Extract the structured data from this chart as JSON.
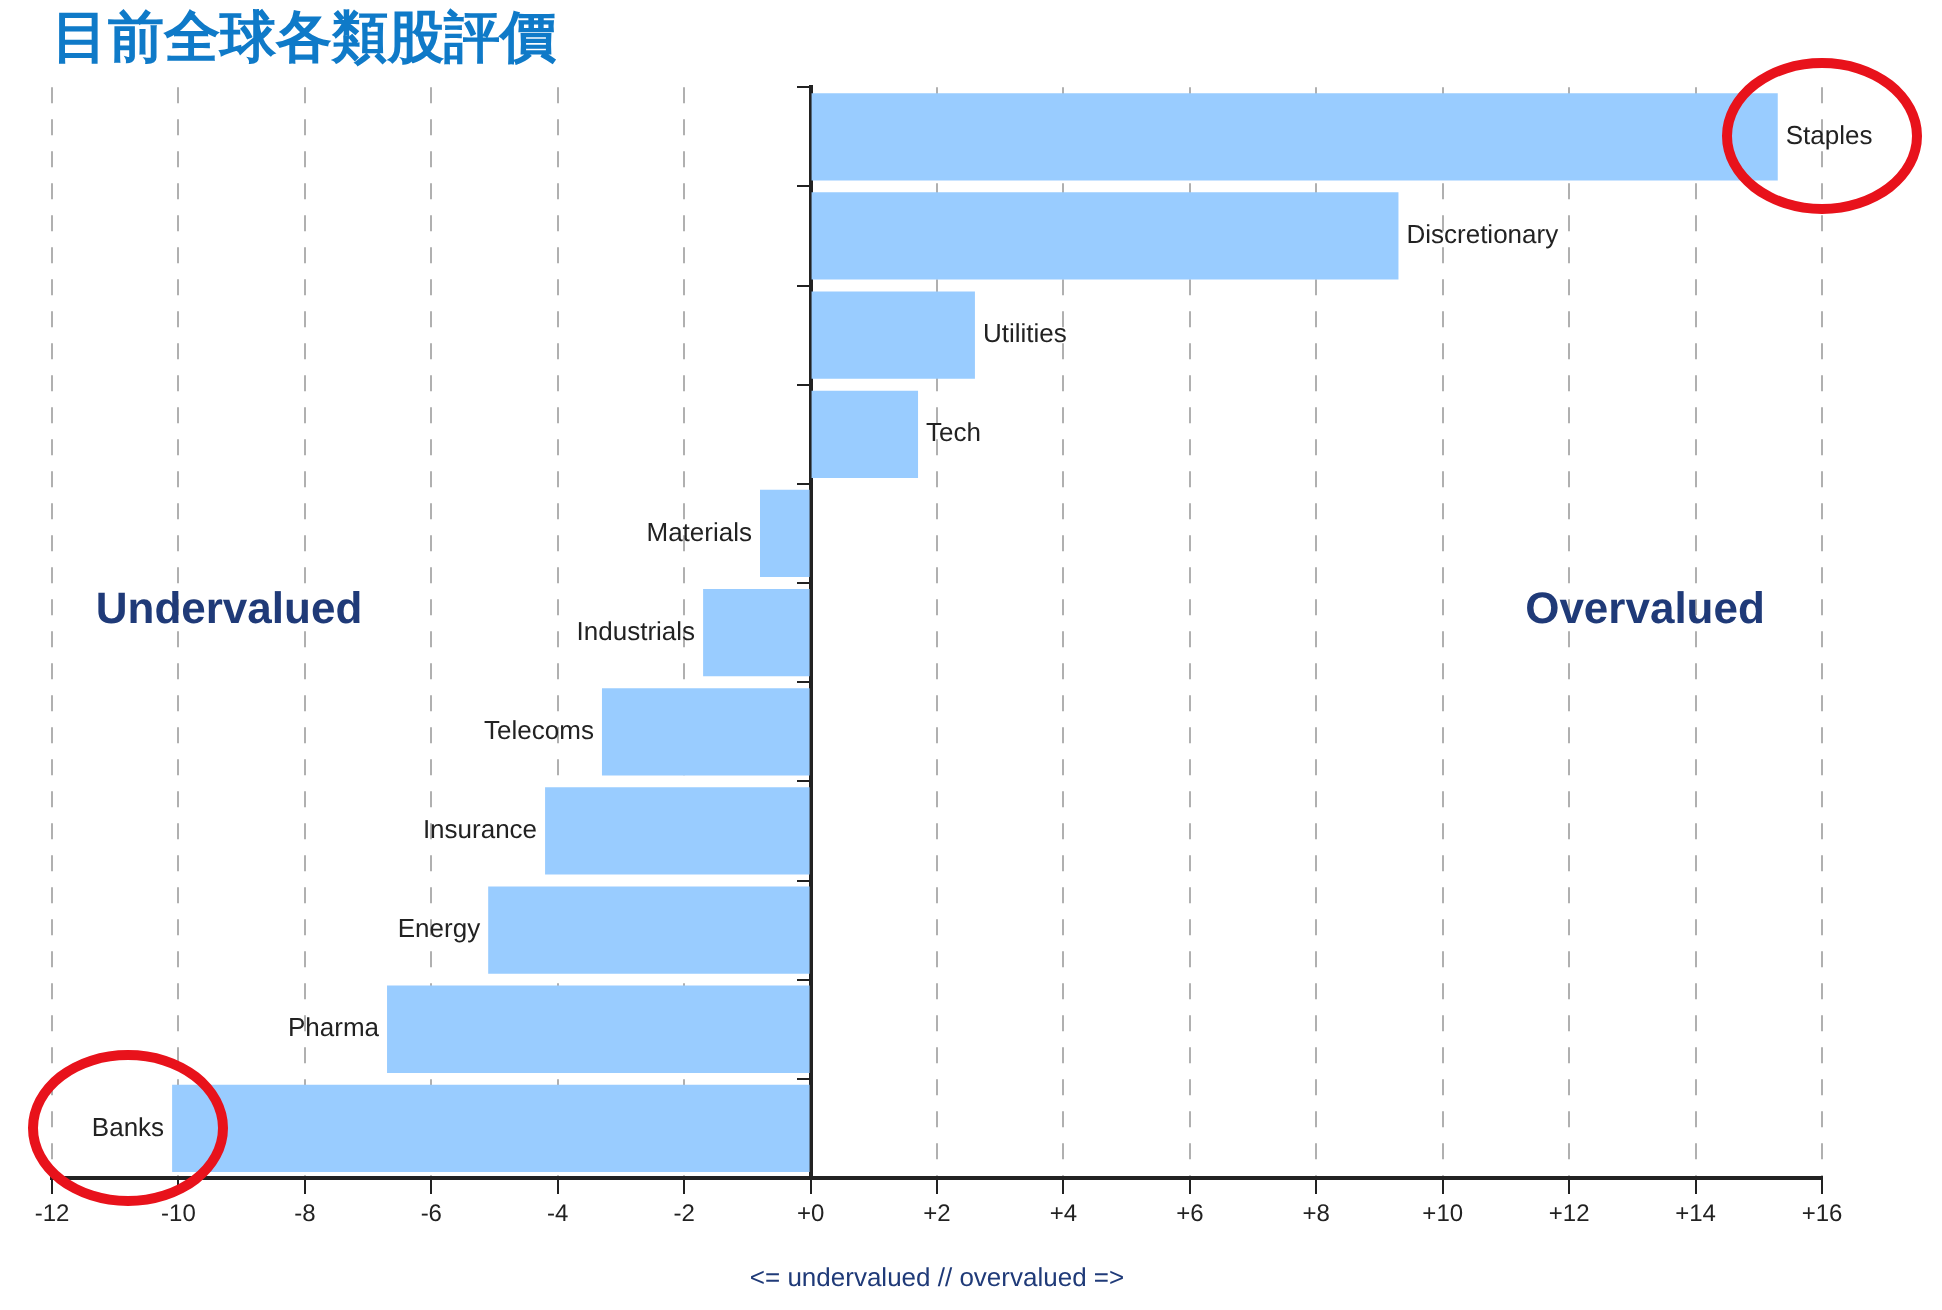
{
  "chart_data": {
    "type": "bar",
    "orientation": "horizontal",
    "title": "目前全球各類股評價",
    "xlabel": "<= undervalued // overvalued =>",
    "categories": [
      "Staples",
      "Discretionary",
      "Utilities",
      "Tech",
      "Materials",
      "Industrials",
      "Telecoms",
      "Insurance",
      "Energy",
      "Pharma",
      "Banks"
    ],
    "values": [
      15.3,
      9.3,
      2.6,
      1.7,
      -0.8,
      -1.7,
      -3.3,
      -4.2,
      -5.1,
      -6.7,
      -10.1
    ],
    "color": "#99ccff",
    "xlim": [
      -12,
      16
    ],
    "xticks": [
      -12,
      -10,
      -8,
      -6,
      -4,
      -2,
      {
        "value": 0,
        "label": "+0"
      },
      {
        "value": 2,
        "label": "+2"
      },
      {
        "value": 4,
        "label": "+4"
      },
      {
        "value": 6,
        "label": "+6"
      },
      {
        "value": 8,
        "label": "+8"
      },
      {
        "value": 10,
        "label": "+10"
      },
      {
        "value": 12,
        "label": "+12"
      },
      {
        "value": 14,
        "label": "+14"
      },
      {
        "value": 16,
        "label": "+16"
      }
    ],
    "annotations": [
      "Undervalued",
      "Overvalued"
    ],
    "grid": "x",
    "legend": false
  }
}
